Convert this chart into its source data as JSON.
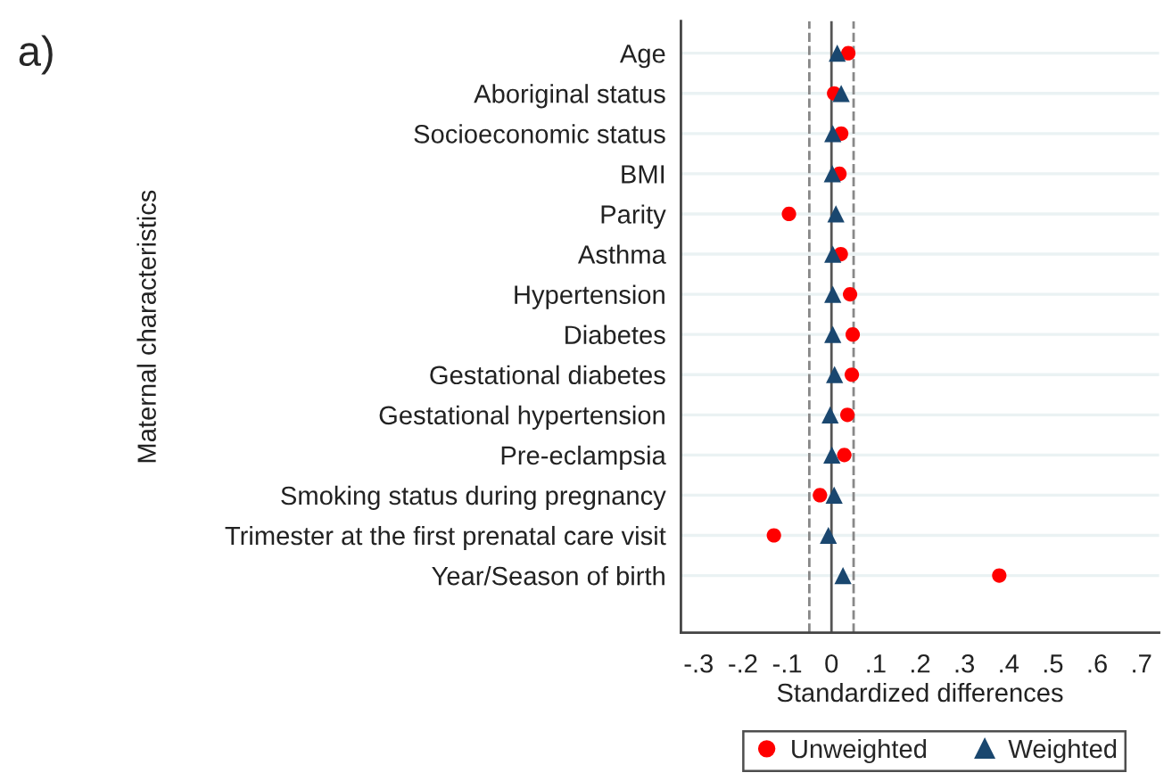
{
  "chart_data": {
    "type": "scatter",
    "orientation": "horizontal",
    "xlabel": "Standardized differences",
    "ylabel": "Maternal characteristics",
    "annotations": [
      "a)"
    ],
    "categories": [
      "Age",
      "Aboriginal status",
      "Socioeconomic status",
      "BMI",
      "Parity",
      "Asthma",
      "Hypertension",
      "Diabetes",
      "Gestational diabetes",
      "Gestational hypertension",
      "Pre-eclampsia",
      "Smoking status during pregnancy",
      "Trimester at the first prenatal care visit",
      "Year/Season of birth"
    ],
    "series": [
      {
        "name": "Unweighted",
        "color": "#ff0000",
        "marker": "circle",
        "values": [
          0.038,
          0.006,
          0.022,
          0.018,
          -0.096,
          0.021,
          0.042,
          0.048,
          0.046,
          0.036,
          0.029,
          -0.026,
          -0.13,
          0.379
        ]
      },
      {
        "name": "Weighted",
        "color": "#1a476f",
        "marker": "triangle",
        "values": [
          0.013,
          0.022,
          0.003,
          0.002,
          0.01,
          0.003,
          0.003,
          0.003,
          0.007,
          -0.003,
          0.001,
          0.006,
          -0.007,
          0.026
        ]
      }
    ],
    "xlim": [
      -0.34,
      0.74
    ],
    "xticks": [
      {
        "value": -0.3,
        "label": "-.3"
      },
      {
        "value": -0.2,
        "label": "-.2"
      },
      {
        "value": -0.1,
        "label": "-.1"
      },
      0,
      {
        "value": 0.1,
        "label": ".1"
      },
      {
        "value": 0.2,
        "label": ".2"
      },
      {
        "value": 0.3,
        "label": ".3"
      },
      {
        "value": 0.4,
        "label": ".4"
      },
      {
        "value": 0.5,
        "label": ".5"
      },
      {
        "value": 0.6,
        "label": ".6"
      },
      {
        "value": 0.7,
        "label": ".7"
      }
    ],
    "ref_lines": [
      {
        "axis": "x",
        "value": 0,
        "color": "#555555",
        "line_style": "solid"
      },
      {
        "axis": "x",
        "value": -0.05,
        "color": "#888888",
        "line_style": "dashed"
      },
      {
        "axis": "x",
        "value": 0.05,
        "color": "#888888",
        "line_style": "dashed"
      }
    ],
    "grid": "y",
    "legend": "bottom"
  }
}
